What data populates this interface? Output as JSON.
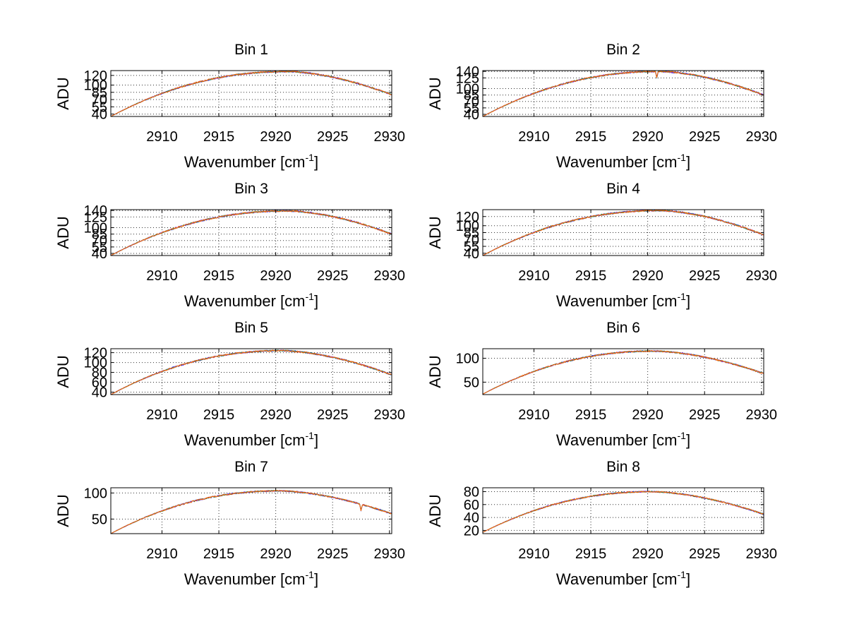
{
  "colors": {
    "background": "#ffffff",
    "axes": "#000000",
    "series": [
      "#0000ff",
      "#8b2be2",
      "#2e8b57",
      "#ff6600"
    ]
  },
  "chart_data": [
    {
      "type": "line",
      "title": "Bin 1",
      "xlabel": "Wavenumber [cm",
      "xlabel_sup": "-1",
      "xlabel_end": "]",
      "ylabel": "ADU",
      "xlim": [
        2905.5,
        2930.2
      ],
      "ylim": [
        35,
        130
      ],
      "xticks": [
        2910,
        2915,
        2920,
        2925,
        2930
      ],
      "yticks": [
        40,
        55,
        70,
        85,
        100,
        120
      ],
      "ytick_labels": [
        "40",
        "55",
        "70",
        "85",
        "100",
        "120"
      ],
      "grid": true,
      "curve": {
        "start": 35,
        "peak": 128,
        "peak_x": 2921,
        "end": 80,
        "dip_x": null
      },
      "series_count": 4
    },
    {
      "type": "line",
      "title": "Bin 2",
      "xlabel": "Wavenumber [cm",
      "xlabel_sup": "-1",
      "xlabel_end": "]",
      "ylabel": "ADU",
      "xlim": [
        2905.5,
        2930.2
      ],
      "ylim": [
        35,
        142
      ],
      "xticks": [
        2910,
        2915,
        2920,
        2925,
        2930
      ],
      "yticks": [
        40,
        55,
        70,
        85,
        100,
        125,
        140
      ],
      "ytick_labels": [
        "40",
        "55",
        "70",
        "85",
        "100",
        "125",
        "140"
      ],
      "grid": true,
      "curve": {
        "start": 35,
        "peak": 140,
        "peak_x": 2921,
        "end": 85,
        "dip_x": 2920.8
      },
      "series_count": 4
    },
    {
      "type": "line",
      "title": "Bin 3",
      "xlabel": "Wavenumber [cm",
      "xlabel_sup": "-1",
      "xlabel_end": "]",
      "ylabel": "ADU",
      "xlim": [
        2905.5,
        2930.2
      ],
      "ylim": [
        35,
        142
      ],
      "xticks": [
        2910,
        2915,
        2920,
        2925,
        2930
      ],
      "yticks": [
        40,
        55,
        70,
        85,
        100,
        125,
        140
      ],
      "ytick_labels": [
        "40",
        "55",
        "70",
        "85",
        "100",
        "125",
        "140"
      ],
      "grid": true,
      "curve": {
        "start": 35,
        "peak": 139,
        "peak_x": 2921,
        "end": 85,
        "dip_x": null
      },
      "series_count": 4
    },
    {
      "type": "line",
      "title": "Bin 4",
      "xlabel": "Wavenumber [cm",
      "xlabel_sup": "-1",
      "xlabel_end": "]",
      "ylabel": "ADU",
      "xlim": [
        2905.5,
        2930.2
      ],
      "ylim": [
        35,
        135
      ],
      "xticks": [
        2910,
        2915,
        2920,
        2925,
        2930
      ],
      "yticks": [
        40,
        55,
        70,
        85,
        100,
        120
      ],
      "ytick_labels": [
        "40",
        "55",
        "70",
        "85",
        "100",
        "120"
      ],
      "grid": true,
      "curve": {
        "start": 35,
        "peak": 133,
        "peak_x": 2921,
        "end": 80,
        "dip_x": null
      },
      "series_count": 4
    },
    {
      "type": "line",
      "title": "Bin 5",
      "xlabel": "Wavenumber [cm",
      "xlabel_sup": "-1",
      "xlabel_end": "]",
      "ylabel": "ADU",
      "xlim": [
        2905.5,
        2930.2
      ],
      "ylim": [
        35,
        128
      ],
      "xticks": [
        2910,
        2915,
        2920,
        2925,
        2930
      ],
      "yticks": [
        40,
        60,
        80,
        100,
        120
      ],
      "ytick_labels": [
        "40",
        "60",
        "80",
        "100",
        "120"
      ],
      "grid": true,
      "curve": {
        "start": 35,
        "peak": 124,
        "peak_x": 2920.5,
        "end": 75,
        "dip_x": null
      },
      "series_count": 4
    },
    {
      "type": "line",
      "title": "Bin 6",
      "xlabel": "Wavenumber [cm",
      "xlabel_sup": "-1",
      "xlabel_end": "]",
      "ylabel": "ADU",
      "xlim": [
        2905.5,
        2930.2
      ],
      "ylim": [
        24,
        120
      ],
      "xticks": [
        2910,
        2915,
        2920,
        2925,
        2930
      ],
      "yticks": [
        50,
        100
      ],
      "ytick_labels": [
        "50",
        "100"
      ],
      "grid": true,
      "curve": {
        "start": 25,
        "peak": 115,
        "peak_x": 2920.5,
        "end": 68,
        "dip_x": null
      },
      "series_count": 4
    },
    {
      "type": "line",
      "title": "Bin 7",
      "xlabel": "Wavenumber [cm",
      "xlabel_sup": "-1",
      "xlabel_end": "]",
      "ylabel": "ADU",
      "xlim": [
        2905.5,
        2930.2
      ],
      "ylim": [
        22,
        110
      ],
      "xticks": [
        2910,
        2915,
        2920,
        2925,
        2930
      ],
      "yticks": [
        50,
        100
      ],
      "ytick_labels": [
        "50",
        "100"
      ],
      "grid": true,
      "curve": {
        "start": 22,
        "peak": 104,
        "peak_x": 2920.3,
        "end": 60,
        "dip_x": 2927.5
      },
      "series_count": 4
    },
    {
      "type": "line",
      "title": "Bin 8",
      "xlabel": "Wavenumber [cm",
      "xlabel_sup": "-1",
      "xlabel_end": "]",
      "ylabel": "ADU",
      "xlim": [
        2905.5,
        2930.2
      ],
      "ylim": [
        15,
        86
      ],
      "xticks": [
        2910,
        2915,
        2920,
        2925,
        2930
      ],
      "yticks": [
        20,
        40,
        60,
        80
      ],
      "ytick_labels": [
        "20",
        "40",
        "60",
        "80"
      ],
      "grid": true,
      "curve": {
        "start": 17,
        "peak": 80,
        "peak_x": 2920.3,
        "end": 45,
        "dip_x": null
      },
      "series_count": 4
    }
  ]
}
